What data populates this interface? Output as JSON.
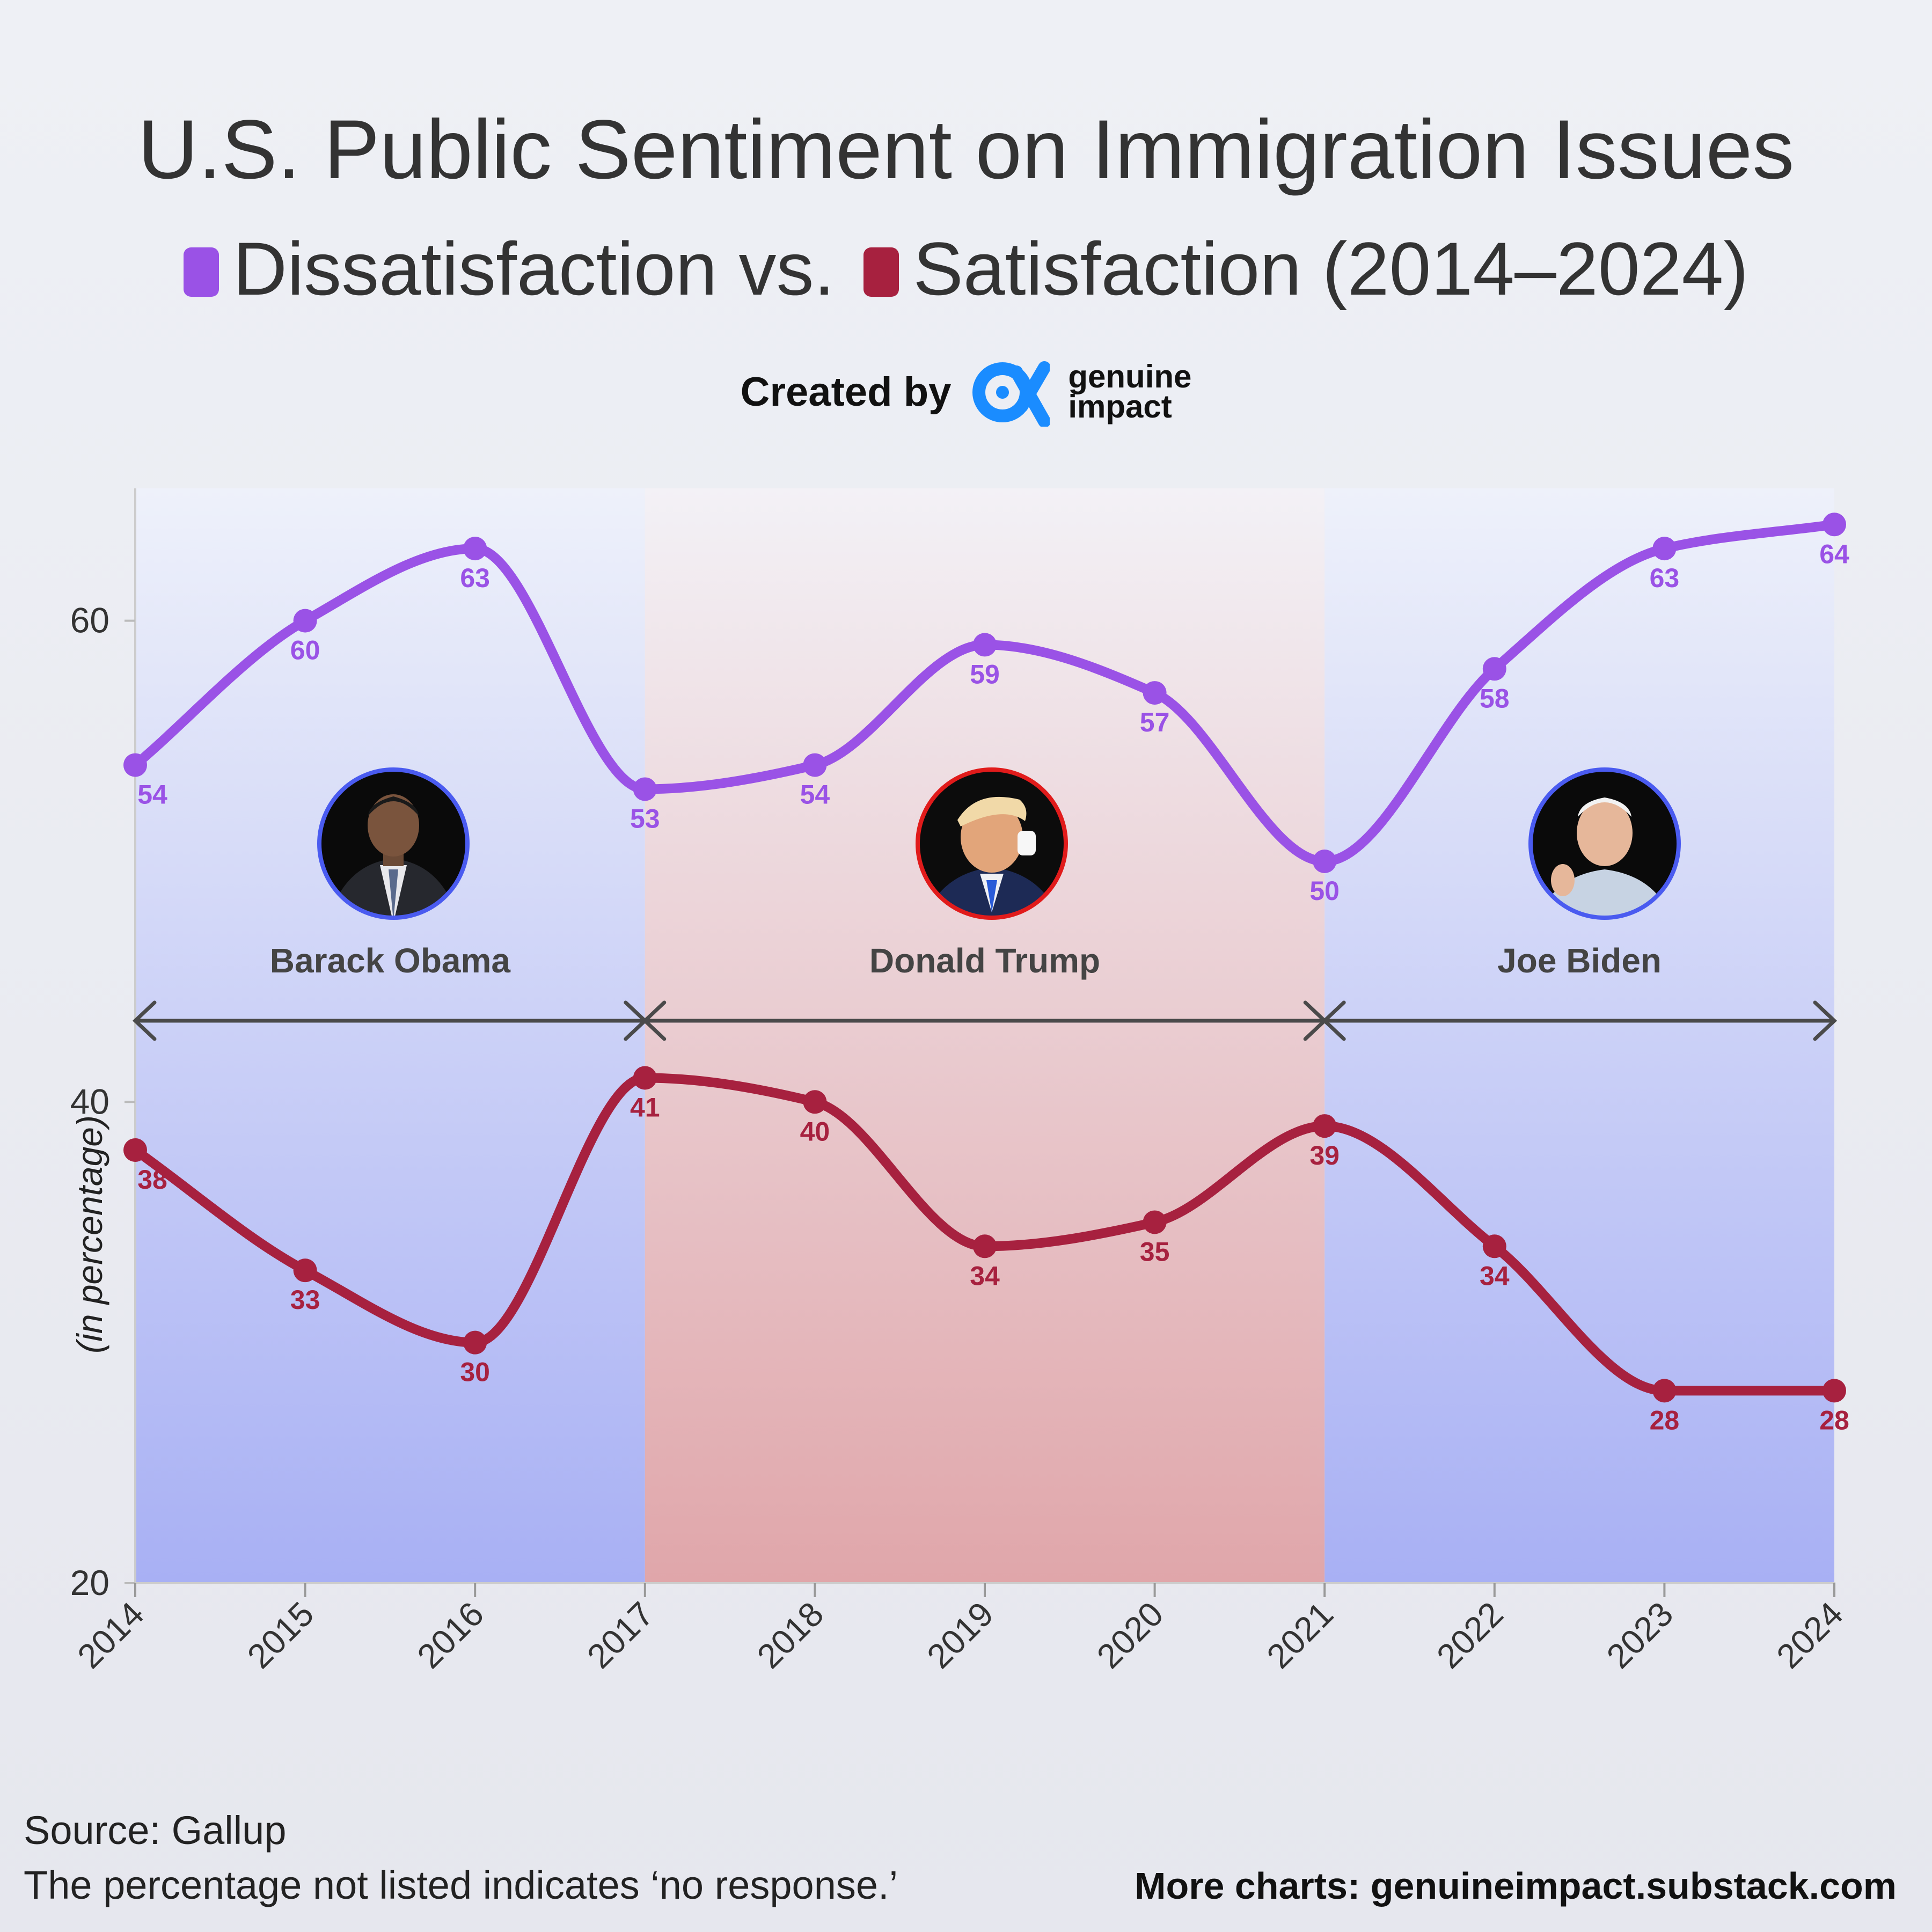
{
  "header": {
    "title": "U.S. Public Sentiment on Immigration Issues",
    "subtitle_a": "Dissatisfaction",
    "subtitle_vs": "vs.",
    "subtitle_b": "Satisfaction (2014–2024)",
    "credit": "Created by",
    "brand_line1": "genuine",
    "brand_line2": "impact"
  },
  "colors": {
    "dissatisfaction": "#9a52e6",
    "satisfaction": "#a7213f",
    "democrat_band": "#a9b0f3",
    "republican_band": "#e0a6aa"
  },
  "chart_data": {
    "type": "line",
    "x": [
      2014,
      2015,
      2016,
      2017,
      2018,
      2019,
      2020,
      2021,
      2022,
      2023,
      2024
    ],
    "series": [
      {
        "name": "Dissatisfaction",
        "values": [
          54,
          60,
          63,
          53,
          54,
          59,
          57,
          50,
          58,
          63,
          64
        ]
      },
      {
        "name": "Satisfaction",
        "values": [
          38,
          33,
          30,
          41,
          40,
          34,
          35,
          39,
          34,
          28,
          28
        ]
      }
    ],
    "ylabel": "(in percentage)",
    "ylim": [
      20,
      65.5
    ],
    "yticks": [
      20,
      40,
      60
    ],
    "xlim": [
      2014,
      2024
    ],
    "presidencies": [
      {
        "name": "Barack Obama",
        "start": 2014,
        "end": 2017,
        "party": "democrat"
      },
      {
        "name": "Donald Trump",
        "start": 2017,
        "end": 2021,
        "party": "republican"
      },
      {
        "name": "Joe Biden",
        "start": 2021,
        "end": 2024,
        "party": "democrat"
      }
    ]
  },
  "footer": {
    "source": "Source: Gallup",
    "note": "The percentage not listed indicates ‘no response.’",
    "more": "More charts: genuineimpact.substack.com"
  }
}
